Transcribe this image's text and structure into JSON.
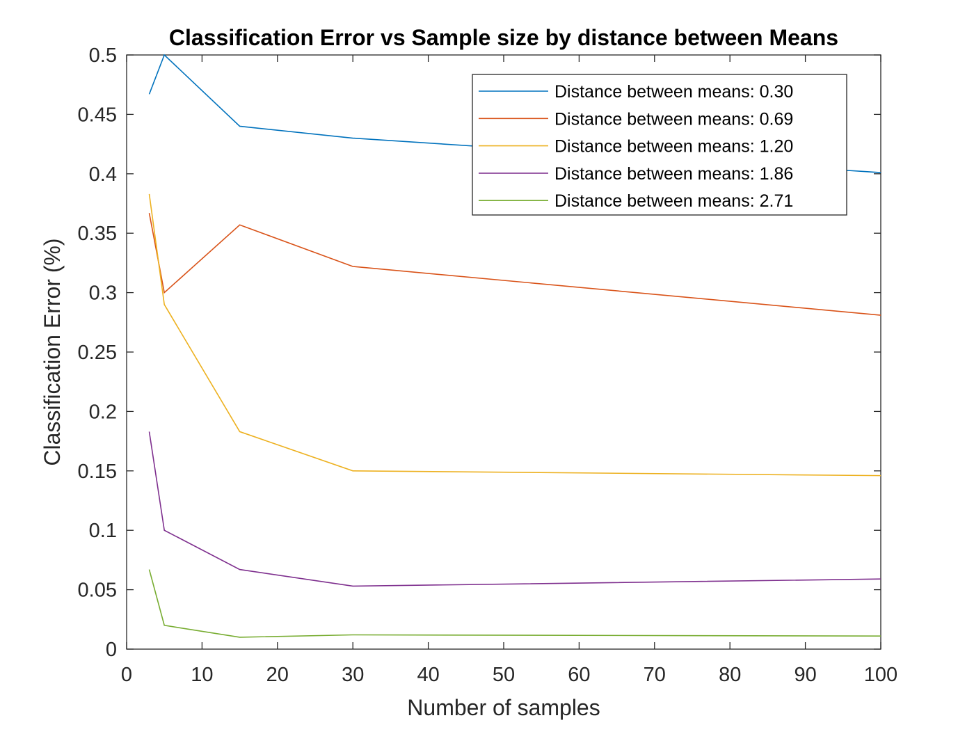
{
  "chart_data": {
    "type": "line",
    "title": "Classification Error vs Sample size by distance between Means",
    "xlabel": "Number of samples",
    "ylabel": "Classification Error (%)",
    "xlim": [
      0,
      100
    ],
    "ylim": [
      0,
      0.5
    ],
    "xticks": [
      0,
      10,
      20,
      30,
      40,
      50,
      60,
      70,
      80,
      90,
      100
    ],
    "xtick_labels": [
      "0",
      "10",
      "20",
      "30",
      "40",
      "50",
      "60",
      "70",
      "80",
      "90",
      "100"
    ],
    "yticks": [
      0,
      0.05,
      0.1,
      0.15,
      0.2,
      0.25,
      0.3,
      0.35,
      0.4,
      0.45,
      0.5
    ],
    "ytick_labels": [
      "0",
      "0.05",
      "0.1",
      "0.15",
      "0.2",
      "0.25",
      "0.3",
      "0.35",
      "0.4",
      "0.45",
      "0.5"
    ],
    "grid": false,
    "legend_position": "top-right",
    "x": [
      3,
      5,
      15,
      30,
      100
    ],
    "series": [
      {
        "name": "Distance between means: 0.30",
        "color": "#0072BD",
        "values": [
          0.467,
          0.5,
          0.44,
          0.43,
          0.401
        ]
      },
      {
        "name": "Distance between means: 0.69",
        "color": "#D95319",
        "values": [
          0.367,
          0.3,
          0.357,
          0.322,
          0.281
        ]
      },
      {
        "name": "Distance between means: 1.20",
        "color": "#EDB120",
        "values": [
          0.383,
          0.29,
          0.183,
          0.15,
          0.146
        ]
      },
      {
        "name": "Distance between means: 1.86",
        "color": "#7E2F8E",
        "values": [
          0.183,
          0.1,
          0.067,
          0.053,
          0.059
        ]
      },
      {
        "name": "Distance between means: 2.71",
        "color": "#77AC30",
        "values": [
          0.067,
          0.02,
          0.01,
          0.012,
          0.011
        ]
      }
    ]
  }
}
